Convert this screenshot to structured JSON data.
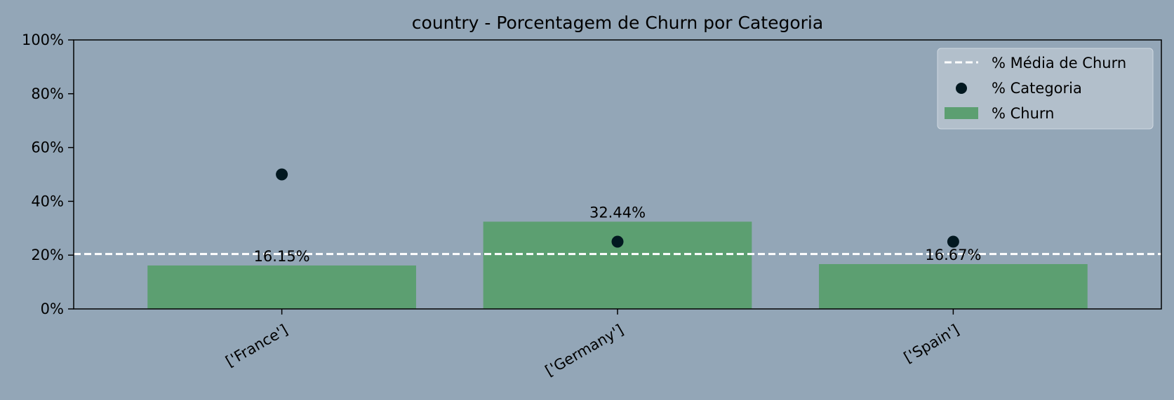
{
  "chart_data": {
    "type": "bar",
    "title": "country - Porcentagem de Churn por Categoria",
    "xlabel": "",
    "ylabel": "",
    "categories": [
      "['France']",
      "['Germany']",
      "['Spain']"
    ],
    "series": [
      {
        "name": "% Churn",
        "type": "bar",
        "values": [
          16.15,
          32.44,
          16.67
        ],
        "labels": [
          "16.15%",
          "32.44%",
          "16.67%"
        ]
      },
      {
        "name": "% Categoria",
        "type": "scatter",
        "values": [
          50,
          25,
          25
        ]
      }
    ],
    "reference_line": {
      "name": "% Média de Churn",
      "value": 20.4
    },
    "ylim": [
      0,
      100
    ],
    "yticks": [
      0,
      20,
      40,
      60,
      80,
      100
    ],
    "ytick_labels": [
      "0%",
      "20%",
      "40%",
      "60%",
      "80%",
      "100%"
    ],
    "grid": false,
    "legend_position": "top-right",
    "colors": {
      "background": "#93a6b7",
      "bar": "#5c9f71",
      "scatter": "#021820",
      "reference_line": "#ffffff",
      "legend_bg": "#b2bfcb"
    }
  }
}
